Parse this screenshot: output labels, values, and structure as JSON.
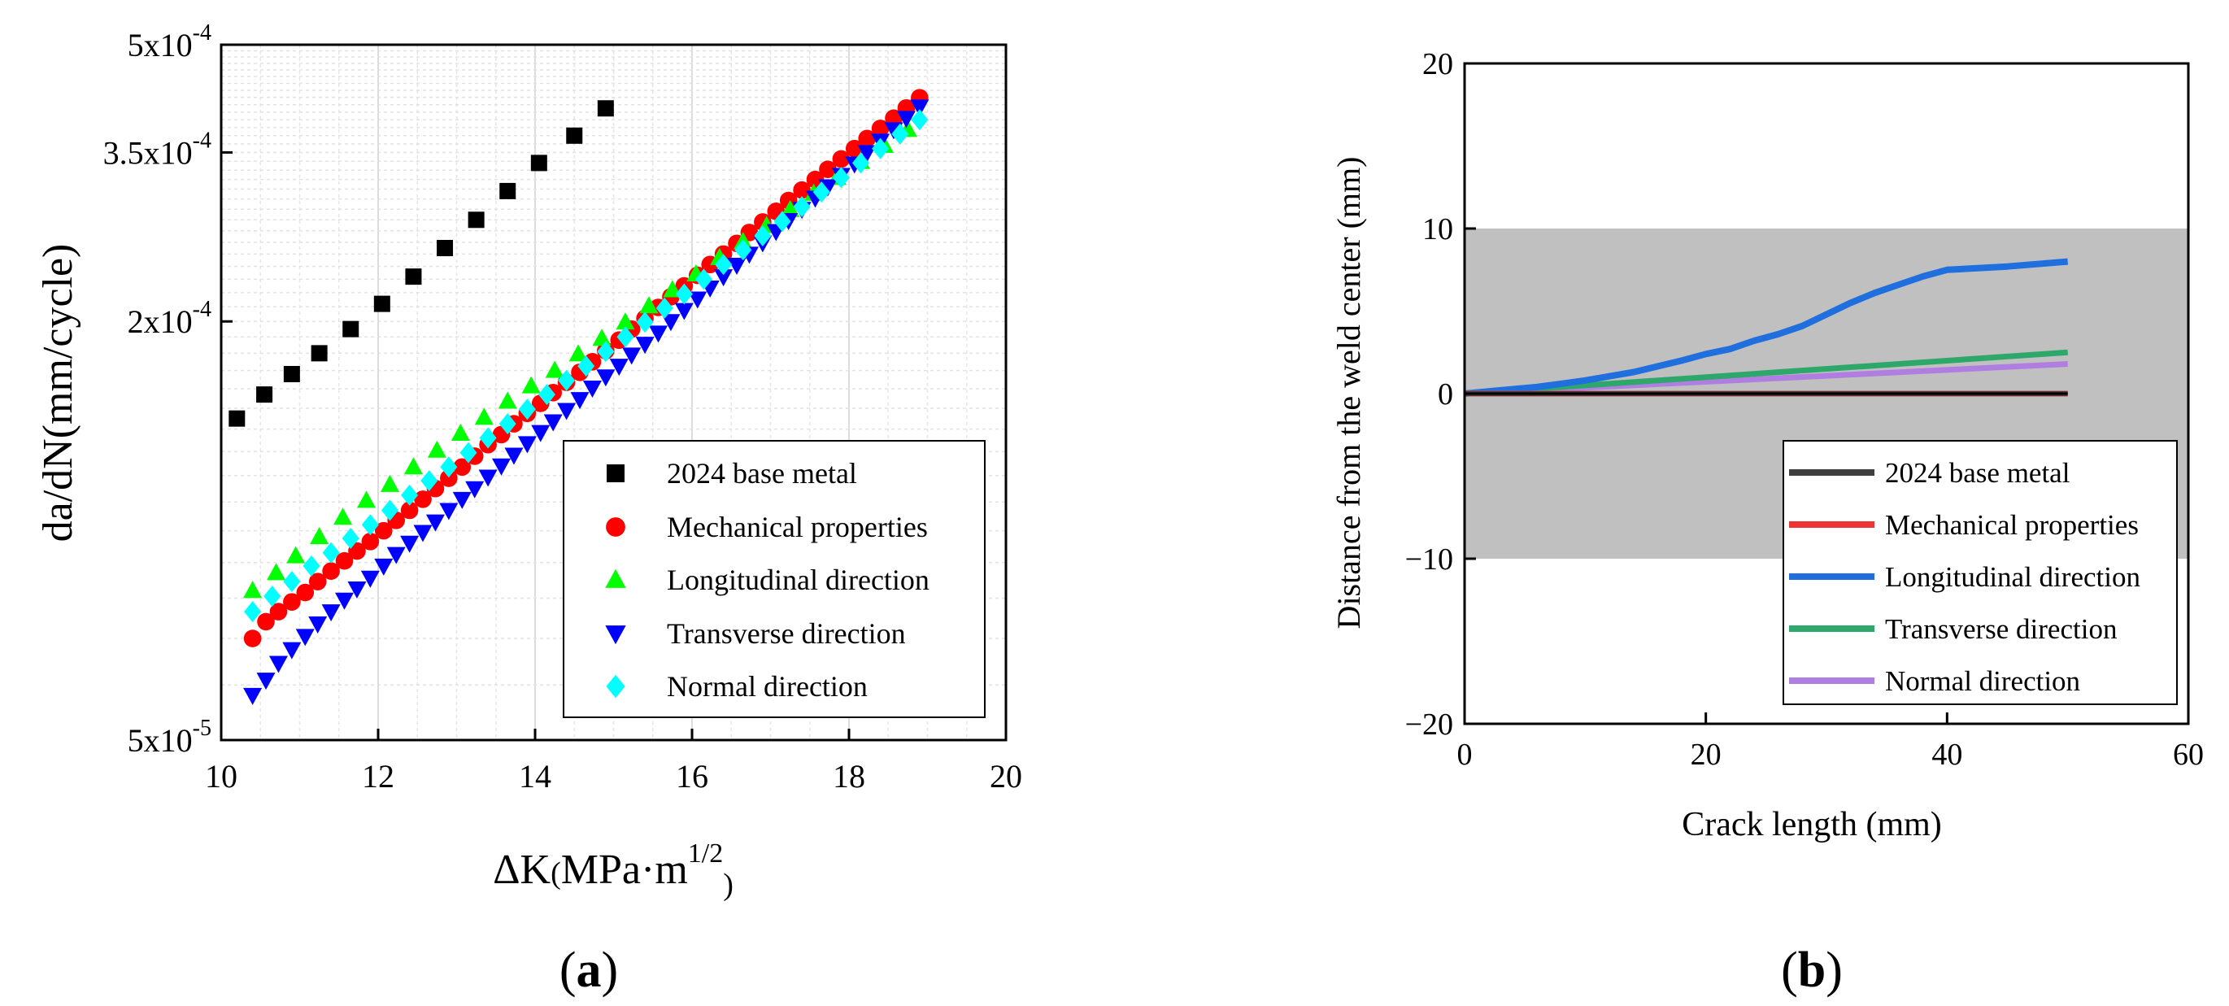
{
  "chart_data": [
    {
      "id": "a",
      "type": "scatter",
      "panel_label": {
        "open": "(",
        "letter": "a",
        "close": ")"
      },
      "xlabel": {
        "delta": "ΔK",
        "open": "(",
        "unit": "MPa·m",
        "exp": "1/2",
        "close": ")"
      },
      "ylabel": "da/dN(mm/cycle)",
      "xscale": "linear",
      "yscale": "log",
      "xlim": [
        10,
        20
      ],
      "ylim": [
        5e-05,
        0.0005
      ],
      "grid": true,
      "minor_grid": true,
      "legend_position": "lower-right",
      "xticks": [
        {
          "value": 10,
          "label": "10"
        },
        {
          "value": 12,
          "label": "12"
        },
        {
          "value": 14,
          "label": "14"
        },
        {
          "value": 16,
          "label": "16"
        },
        {
          "value": 18,
          "label": "18"
        },
        {
          "value": 20,
          "label": "20"
        }
      ],
      "yticks": [
        {
          "value": 5e-05,
          "mant": "5x10",
          "exp": "-5"
        },
        {
          "value": 0.0002,
          "mant": "2x10",
          "exp": "-4"
        },
        {
          "value": 0.00035,
          "mant": "3.5x10",
          "exp": "-4"
        },
        {
          "value": 0.0005,
          "mant": "5x10",
          "exp": "-4"
        }
      ],
      "series": [
        {
          "name": "2024 base metal",
          "marker": "square",
          "color": "#000000",
          "x": [
            10.2,
            10.55,
            10.9,
            11.25,
            11.65,
            12.05,
            12.45,
            12.85,
            13.25,
            13.65,
            14.05,
            14.5,
            14.9
          ],
          "y": [
            0.000145,
            0.000157,
            0.000168,
            0.00018,
            0.000195,
            0.000212,
            0.000232,
            0.000255,
            0.00028,
            0.000308,
            0.000338,
            0.00037,
            0.000405
          ]
        },
        {
          "name": "Mechanical properties",
          "marker": "circle",
          "color": "#ff0000",
          "x": [
            10.4,
            10.57,
            10.73,
            10.9,
            11.07,
            11.23,
            11.4,
            11.57,
            11.73,
            11.9,
            12.07,
            12.23,
            12.4,
            12.57,
            12.73,
            12.9,
            13.07,
            13.23,
            13.4,
            13.57,
            13.73,
            13.9,
            14.07,
            14.23,
            14.4,
            14.57,
            14.73,
            14.9,
            15.07,
            15.23,
            15.4,
            15.57,
            15.73,
            15.9,
            16.07,
            16.23,
            16.4,
            16.57,
            16.73,
            16.9,
            17.07,
            17.23,
            17.4,
            17.57,
            17.73,
            17.9,
            18.07,
            18.23,
            18.4,
            18.57,
            18.73,
            18.9
          ],
          "y": [
            7e-05,
            7.4e-05,
            7.65e-05,
            7.9e-05,
            8.15e-05,
            8.45e-05,
            8.75e-05,
            9.05e-05,
            9.35e-05,
            9.65e-05,
            0.0001,
            0.0001035,
            0.000107,
            0.000111,
            0.000115,
            0.000119,
            0.0001235,
            0.000128,
            0.000133,
            0.0001375,
            0.0001425,
            0.0001475,
            0.0001525,
            0.000158,
            0.0001635,
            0.000169,
            0.000175,
            0.0001815,
            0.000188,
            0.000195,
            0.000202,
            0.0002095,
            0.000217,
            0.000225,
            0.000233,
            0.0002415,
            0.00025,
            0.000259,
            0.0002685,
            0.000278,
            0.000288,
            0.0002985,
            0.000309,
            0.00032,
            0.000331,
            0.0003425,
            0.0003545,
            0.0003665,
            0.000379,
            0.000392,
            0.0004055,
            0.0004195
          ]
        },
        {
          "name": "Longitudinal direction",
          "marker": "triangle-up",
          "color": "#00ff00",
          "x": [
            10.4,
            10.7,
            10.95,
            11.25,
            11.55,
            11.85,
            12.15,
            12.45,
            12.75,
            13.05,
            13.35,
            13.65,
            13.95,
            14.25,
            14.55,
            14.85,
            15.15,
            15.45,
            15.75,
            16.05,
            16.35,
            16.65,
            16.95,
            17.25,
            17.55,
            17.85,
            18.15,
            18.45,
            18.75
          ],
          "y": [
            8.2e-05,
            8.7e-05,
            9.2e-05,
            9.8e-05,
            0.0001045,
            0.0001105,
            0.0001165,
            0.0001235,
            0.0001305,
            0.000138,
            0.0001455,
            0.0001535,
            0.0001615,
            0.00017,
            0.0001795,
            0.000189,
            0.0001995,
            0.0002105,
            0.000222,
            0.000234,
            0.000247,
            0.0002605,
            0.0002745,
            0.0002895,
            0.0003055,
            0.000322,
            0.0003395,
            0.000358,
            0.0003775
          ]
        },
        {
          "name": "Transverse direction",
          "marker": "triangle-down",
          "color": "#0000ff",
          "x": [
            10.4,
            10.57,
            10.73,
            10.9,
            11.07,
            11.23,
            11.4,
            11.57,
            11.73,
            11.9,
            12.07,
            12.23,
            12.4,
            12.57,
            12.73,
            12.9,
            13.07,
            13.23,
            13.4,
            13.57,
            13.73,
            13.9,
            14.07,
            14.23,
            14.4,
            14.57,
            14.73,
            14.9,
            15.07,
            15.23,
            15.4,
            15.57,
            15.73,
            15.9,
            16.07,
            16.23,
            16.4,
            16.57,
            16.73,
            16.9,
            17.07,
            17.23,
            17.4,
            17.57,
            17.73,
            17.9,
            18.07,
            18.23,
            18.4,
            18.57,
            18.73,
            18.9
          ],
          "y": [
            5.8e-05,
            6.1e-05,
            6.45e-05,
            6.75e-05,
            7.05e-05,
            7.35e-05,
            7.65e-05,
            7.95e-05,
            8.25e-05,
            8.55e-05,
            8.9e-05,
            9.25e-05,
            9.6e-05,
            9.95e-05,
            0.000103,
            0.000107,
            0.000111,
            0.000115,
            0.0001195,
            0.000124,
            0.0001285,
            0.0001335,
            0.0001385,
            0.0001435,
            0.000149,
            0.0001545,
            0.0001605,
            0.0001665,
            0.0001725,
            0.000179,
            0.0001855,
            0.0001925,
            0.0002,
            0.0002075,
            0.0002155,
            0.0002235,
            0.000232,
            0.000241,
            0.00025,
            0.0002595,
            0.0002695,
            0.0002795,
            0.00029,
            0.000301,
            0.0003125,
            0.0003245,
            0.000337,
            0.00035,
            0.0003635,
            0.0003775,
            0.000392,
            0.000407
          ]
        },
        {
          "name": "Normal direction",
          "marker": "diamond",
          "color": "#00ffff",
          "x": [
            10.4,
            10.65,
            10.9,
            11.15,
            11.4,
            11.65,
            11.9,
            12.15,
            12.4,
            12.65,
            12.9,
            13.15,
            13.4,
            13.65,
            13.9,
            14.15,
            14.4,
            14.65,
            14.9,
            15.15,
            15.4,
            15.65,
            15.9,
            16.15,
            16.4,
            16.65,
            16.9,
            17.15,
            17.4,
            17.65,
            17.9,
            18.15,
            18.4,
            18.65,
            18.9
          ],
          "y": [
            7.65e-05,
            8.05e-05,
            8.45e-05,
            8.9e-05,
            9.3e-05,
            9.75e-05,
            0.000102,
            0.000107,
            0.0001125,
            0.000118,
            0.0001235,
            0.0001295,
            0.000136,
            0.0001425,
            0.0001495,
            0.000157,
            0.0001645,
            0.0001725,
            0.000181,
            0.00019,
            0.0001995,
            0.000209,
            0.000219,
            0.00023,
            0.0002415,
            0.0002535,
            0.0002655,
            0.0002785,
            0.0002925,
            0.000307,
            0.000322,
            0.000338,
            0.0003545,
            0.000372,
            0.00039
          ]
        }
      ]
    },
    {
      "id": "b",
      "type": "line",
      "panel_label": {
        "open": "(",
        "letter": "b",
        "close": ")"
      },
      "xlabel": "Crack length (mm)",
      "ylabel": "Distance from the weld center (mm)",
      "xlim": [
        0,
        60
      ],
      "ylim": [
        -20,
        20
      ],
      "grid": false,
      "legend_position": "lower-right",
      "shaded_band": {
        "y_from": -10,
        "y_to": 10,
        "color": "#c0c0c0"
      },
      "xticks": [
        {
          "value": 0,
          "label": "0"
        },
        {
          "value": 20,
          "label": "20"
        },
        {
          "value": 40,
          "label": "40"
        },
        {
          "value": 60,
          "label": "60"
        }
      ],
      "yticks": [
        {
          "value": -20,
          "label": "−20"
        },
        {
          "value": -10,
          "label": "−10"
        },
        {
          "value": 0,
          "label": "0"
        },
        {
          "value": 10,
          "label": "10"
        },
        {
          "value": 20,
          "label": "20"
        }
      ],
      "series": [
        {
          "name": "2024 base metal",
          "color": "#404040",
          "x": [
            0,
            50
          ],
          "y": [
            0,
            0
          ]
        },
        {
          "name": "Mechanical properties",
          "color": "#ee3333",
          "x": [
            0,
            50
          ],
          "y": [
            0,
            0
          ]
        },
        {
          "name": "Longitudinal direction",
          "color": "#1f6fdf",
          "x": [
            0,
            3,
            6,
            10,
            14,
            18,
            20,
            22,
            24,
            26,
            28,
            30,
            32,
            34,
            36,
            38,
            40,
            45,
            50
          ],
          "y": [
            0,
            0.2,
            0.4,
            0.8,
            1.3,
            2.0,
            2.4,
            2.7,
            3.2,
            3.6,
            4.1,
            4.8,
            5.5,
            6.1,
            6.6,
            7.1,
            7.5,
            7.7,
            8.0
          ]
        },
        {
          "name": "Transverse direction",
          "color": "#2ea86a",
          "x": [
            0,
            50
          ],
          "y": [
            0,
            2.5
          ]
        },
        {
          "name": "Normal direction",
          "color": "#b07de0",
          "x": [
            0,
            50
          ],
          "y": [
            0,
            1.8
          ]
        }
      ]
    }
  ]
}
